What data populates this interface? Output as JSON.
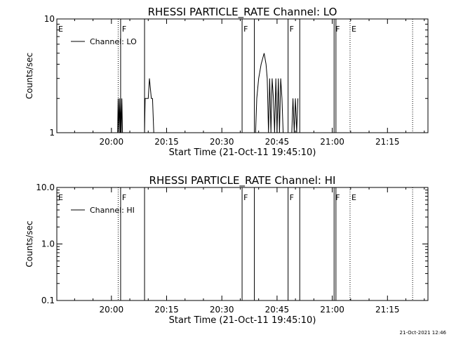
{
  "footer_timestamp": "21-Oct-2021 12:46",
  "chart_data": [
    {
      "type": "line",
      "title": "RHESSI PARTICLE_RATE Channel: LO",
      "xlabel": "Start Time (21-Oct-11 19:45:10)",
      "ylabel": "Counts/sec",
      "y_scale": "log",
      "ylim": [
        1,
        10
      ],
      "y_ticks": [
        1,
        10
      ],
      "y_tick_labels": [
        "1",
        "10"
      ],
      "xlim": [
        "19:45:10",
        "21:26:00"
      ],
      "x_ticks": [
        "20:00",
        "20:15",
        "20:30",
        "20:45",
        "21:00",
        "21:15"
      ],
      "x_tick_labels": [
        "20:00",
        "20:15",
        "20:30",
        "20:45",
        "21:00",
        "21:15"
      ],
      "legend": {
        "position": "top-left",
        "entries": [
          "Channel: LO"
        ]
      },
      "series": [
        {
          "name": "Channel: LO",
          "x": [
            "20:01:40",
            "20:01:50",
            "20:02:00",
            "20:02:10",
            "20:02:20",
            "20:02:30",
            "20:02:40",
            "20:02:50",
            "20:03:00",
            "20:03:10",
            "20:09:00",
            "20:09:10",
            "20:10:00",
            "20:10:20",
            "20:10:50",
            "20:11:10",
            "20:11:30",
            "20:11:50",
            "20:12:10",
            "20:12:30",
            "20:39:10",
            "20:39:30",
            "20:40:00",
            "20:40:40",
            "20:41:30",
            "20:42:00",
            "20:42:20",
            "20:42:40",
            "20:43:00",
            "20:43:20",
            "20:43:40",
            "20:44:00",
            "20:44:20",
            "20:44:40",
            "20:45:00",
            "20:45:20",
            "20:45:40",
            "20:46:00",
            "20:46:20",
            "20:46:40",
            "20:47:00",
            "20:47:20",
            "20:49:00",
            "20:49:20",
            "20:49:40",
            "20:50:00",
            "20:50:20",
            "20:50:40"
          ],
          "y": [
            1,
            2,
            1,
            2,
            1,
            2,
            1,
            2,
            1,
            1,
            1,
            2,
            2,
            3,
            2,
            2,
            1,
            1,
            1,
            1,
            1,
            2,
            3,
            4,
            5,
            4,
            3,
            1,
            3,
            1,
            3,
            2,
            1,
            3,
            1,
            3,
            1,
            3,
            2,
            1,
            1,
            1,
            1,
            2,
            1,
            2,
            1,
            2
          ]
        }
      ],
      "markers": [
        {
          "label": "E",
          "time": "19:45:10",
          "style": "dotted"
        },
        {
          "label": "",
          "time": "20:01:50",
          "style": "dotted"
        },
        {
          "label": "F",
          "time": "20:02:30",
          "style": "solid"
        },
        {
          "label": "",
          "time": "20:09:00",
          "style": "solid"
        },
        {
          "label": "F",
          "time": "20:35:30",
          "style": "solid"
        },
        {
          "label": "",
          "time": "20:38:50",
          "style": "solid"
        },
        {
          "label": "F",
          "time": "20:48:00",
          "style": "solid"
        },
        {
          "label": "",
          "time": "20:51:10",
          "style": "solid"
        },
        {
          "label": "F",
          "time": "21:00:30",
          "style": "solid"
        },
        {
          "label": "",
          "time": "21:01:00",
          "style": "solid"
        },
        {
          "label": "E",
          "time": "21:04:50",
          "style": "dotted"
        },
        {
          "label": "",
          "time": "21:21:50",
          "style": "dotted"
        }
      ]
    },
    {
      "type": "line",
      "title": "RHESSI PARTICLE_RATE Channel: HI",
      "xlabel": "Start Time (21-Oct-11 19:45:10)",
      "ylabel": "Counts/sec",
      "y_scale": "log",
      "ylim": [
        0.1,
        10
      ],
      "y_ticks": [
        0.1,
        1,
        10
      ],
      "y_tick_labels": [
        "0.1",
        "1.0",
        "10.0"
      ],
      "xlim": [
        "19:45:10",
        "21:26:00"
      ],
      "x_ticks": [
        "20:00",
        "20:15",
        "20:30",
        "20:45",
        "21:00",
        "21:15"
      ],
      "x_tick_labels": [
        "20:00",
        "20:15",
        "20:30",
        "20:45",
        "21:00",
        "21:15"
      ],
      "legend": {
        "position": "top-left",
        "entries": [
          "Channel: HI"
        ]
      },
      "series": [
        {
          "name": "Channel: HI",
          "x": [],
          "y": []
        }
      ],
      "markers": [
        {
          "label": "E",
          "time": "19:45:10",
          "style": "dotted"
        },
        {
          "label": "",
          "time": "20:01:50",
          "style": "dotted"
        },
        {
          "label": "F",
          "time": "20:02:30",
          "style": "solid"
        },
        {
          "label": "",
          "time": "20:09:00",
          "style": "solid"
        },
        {
          "label": "F",
          "time": "20:35:30",
          "style": "solid"
        },
        {
          "label": "",
          "time": "20:38:50",
          "style": "solid"
        },
        {
          "label": "F",
          "time": "20:48:00",
          "style": "solid"
        },
        {
          "label": "",
          "time": "20:51:10",
          "style": "solid"
        },
        {
          "label": "F",
          "time": "21:00:30",
          "style": "solid"
        },
        {
          "label": "",
          "time": "21:01:00",
          "style": "solid"
        },
        {
          "label": "E",
          "time": "21:04:50",
          "style": "dotted"
        },
        {
          "label": "",
          "time": "21:21:50",
          "style": "dotted"
        }
      ]
    }
  ]
}
